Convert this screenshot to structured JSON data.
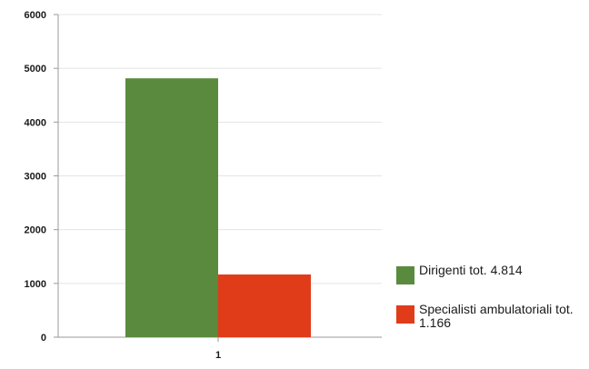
{
  "chart_data": {
    "type": "bar",
    "categories": [
      "1"
    ],
    "series": [
      {
        "name": "Dirigenti tot. 4.814",
        "values": [
          4814
        ],
        "color": "#5a8a3e"
      },
      {
        "name": "Specialisti ambulatoriali tot. 1.166",
        "values": [
          1166
        ],
        "color": "#e03c1a"
      }
    ],
    "ylim": [
      0,
      6000
    ],
    "yticks": [
      0,
      1000,
      2000,
      3000,
      4000,
      5000,
      6000
    ],
    "grid": true,
    "legend": "right",
    "title": "",
    "xlabel": "",
    "ylabel": ""
  }
}
